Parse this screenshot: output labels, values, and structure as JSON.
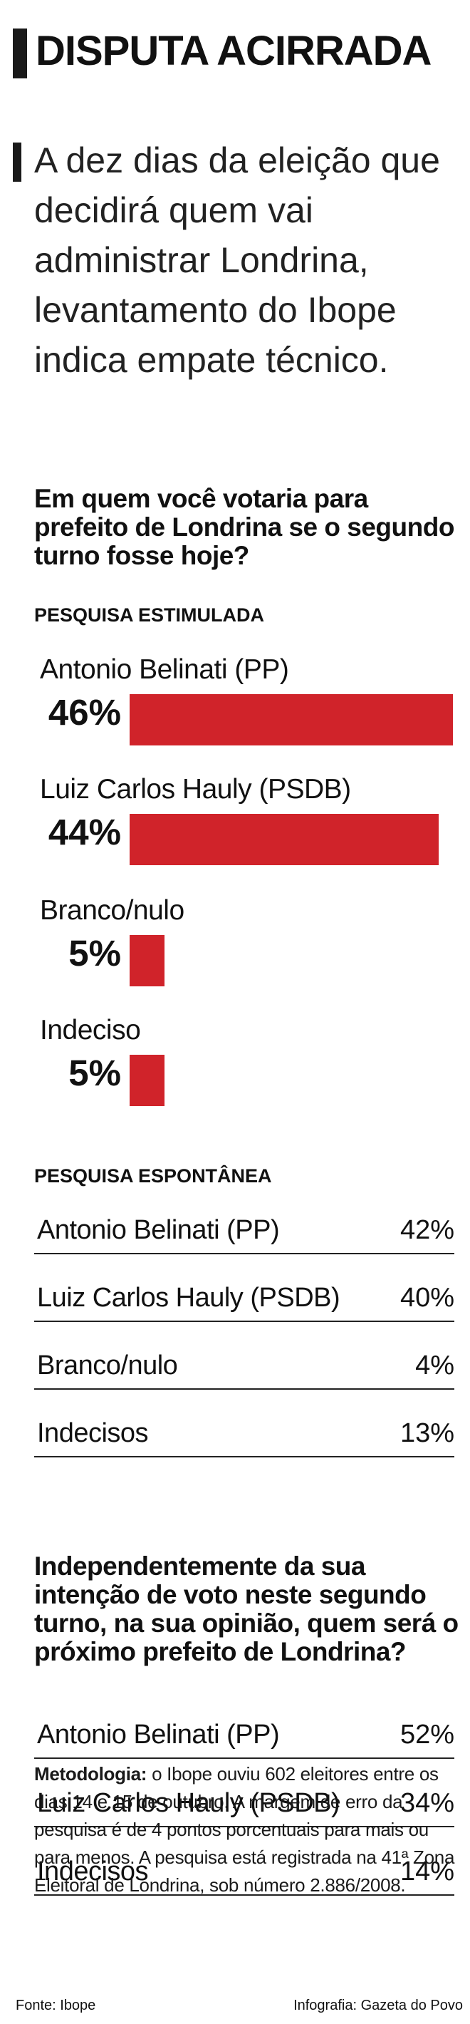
{
  "header": {
    "title": "DISPUTA ACIRRADA",
    "lede": "A dez dias da eleição que decidirá quem vai administrar Londrina, levantamento do Ibope indica empate técnico."
  },
  "q1": {
    "question": "Em quem você votaria para prefeito de Londrina se o segundo turno fosse hoje?",
    "stimulated_label": "PESQUISA ESTIMULADA",
    "spontaneous_label": "PESQUISA ESPONTÂNEA"
  },
  "q2": {
    "question": "Independentemente da sua intenção de voto neste segundo turno, na sua opinião, quem será o próximo prefeito de Londrina?"
  },
  "methodology": {
    "label": "Metodologia:",
    "text": "o Ibope ouviu 602 eleitores entre os dias 14 e 15 de outubro. A margem de erro da pesquisa é de 4 pontos porcentuais para mais ou para menos. A pesquisa está registrada na 41ª Zona Eleitoral de Londrina, sob número 2.886/2008."
  },
  "footer": {
    "source": "Fonte: Ibope",
    "credit": "Infografia: Gazeta do Povo"
  },
  "colors": {
    "bar": "#d0232a",
    "text": "#1a1a1a"
  },
  "chart_data": [
    {
      "type": "bar",
      "title": "PESQUISA ESTIMULADA",
      "categories": [
        "Antonio Belinati (PP)",
        "Luiz Carlos Hauly (PSDB)",
        "Branco/nulo",
        "Indeciso"
      ],
      "values": [
        46,
        44,
        5,
        5
      ],
      "labels": [
        "46%",
        "44%",
        "5%",
        "5%"
      ],
      "unit": "%"
    },
    {
      "type": "table",
      "title": "PESQUISA ESPONTÂNEA",
      "rows": [
        {
          "name": "Antonio Belinati (PP)",
          "value": "42%"
        },
        {
          "name": "Luiz Carlos Hauly (PSDB)",
          "value": "40%"
        },
        {
          "name": "Branco/nulo",
          "value": "4%"
        },
        {
          "name": "Indecisos",
          "value": "13%"
        }
      ]
    },
    {
      "type": "table",
      "rows": [
        {
          "name": "Antonio Belinati (PP)",
          "value": "52%"
        },
        {
          "name": "Luiz Carlos Hauly (PSDB)",
          "value": "34%"
        },
        {
          "name": "Indecisos",
          "value": "14%"
        }
      ]
    }
  ]
}
